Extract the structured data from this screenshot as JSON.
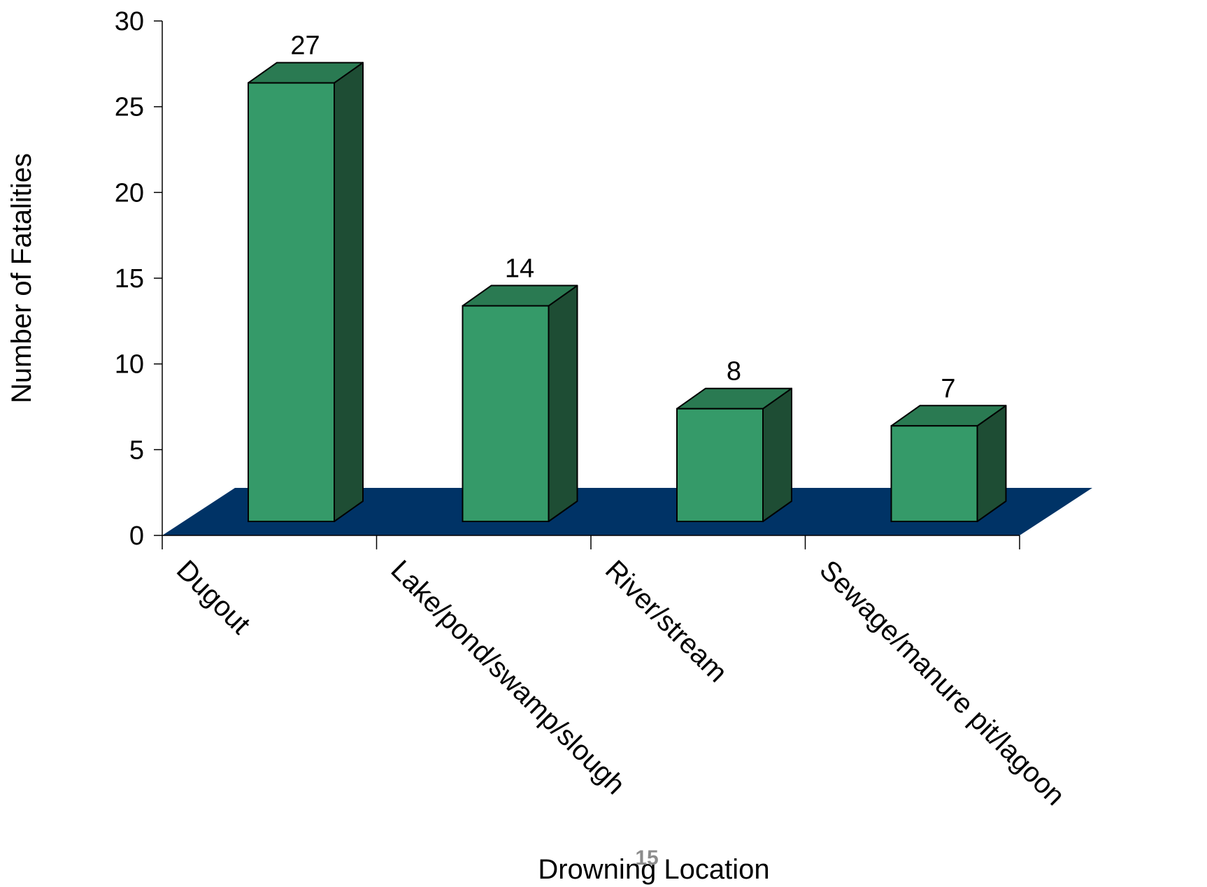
{
  "chart_data": {
    "type": "bar",
    "style": "3d",
    "categories": [
      "Dugout",
      "Lake/pond/swamp/slough",
      "River/stream",
      "Sewage/manure pit/lagoon"
    ],
    "values": [
      27,
      14,
      8,
      7
    ],
    "data_labels": [
      "27",
      "14",
      "8",
      "7"
    ],
    "title": "",
    "xlabel": "Drowning Location",
    "ylabel": "Number of Fatalities",
    "ylim": [
      0,
      30
    ],
    "yticks": [
      "0",
      "5",
      "10",
      "15",
      "20",
      "25",
      "30"
    ],
    "grid": false,
    "legend": "none",
    "colors": {
      "bar_front": "#359a69",
      "bar_top": "#2a7a52",
      "bar_side": "#1e4d34",
      "floor": "#003366",
      "outline": "#000000"
    }
  },
  "page": {
    "number": "15"
  }
}
